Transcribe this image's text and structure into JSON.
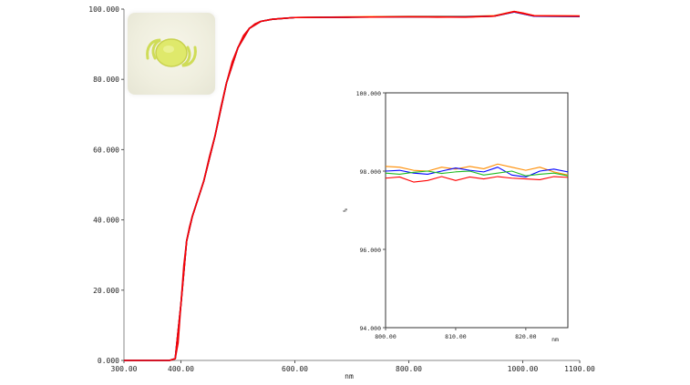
{
  "chart_data": [
    {
      "type": "line",
      "xlabel": "nm",
      "ylabel": "",
      "xlim": [
        300,
        1100
      ],
      "ylim": [
        0,
        100
      ],
      "x_ticks": [
        "300.00",
        "400.00",
        "600.00",
        "800.00",
        "1000.00",
        "1100.00"
      ],
      "x_tick_values": [
        300,
        400,
        600,
        800,
        1000,
        1100
      ],
      "y_ticks": [
        "0.000",
        "20.000",
        "40.000",
        "60.000",
        "80.000",
        "100.000"
      ],
      "y_tick_values": [
        0,
        20,
        40,
        60,
        80,
        100
      ],
      "grid": false,
      "series": [
        {
          "color": "#ff0000",
          "x": [
            300,
            380,
            390,
            395,
            400,
            405,
            410,
            415,
            420,
            430,
            440,
            450,
            460,
            470,
            480,
            490,
            500,
            510,
            520,
            530,
            540,
            560,
            580,
            600,
            650,
            700,
            750,
            800,
            850,
            900,
            950,
            970,
            985,
            1000,
            1020,
            1050,
            1100
          ],
          "y": [
            0,
            0,
            0.5,
            5,
            16,
            27,
            34,
            38,
            41,
            46,
            51,
            58,
            64,
            72,
            79,
            85,
            89,
            92.5,
            94.5,
            95.8,
            96.5,
            97.1,
            97.4,
            97.6,
            97.7,
            97.7,
            97.8,
            97.8,
            97.7,
            97.8,
            98.0,
            98.8,
            99.3,
            98.9,
            98.1,
            98.0,
            98.0
          ]
        },
        {
          "color": "#ff8c00",
          "x": [
            300,
            380,
            390,
            400,
            410,
            420,
            440,
            460,
            480,
            500,
            520,
            540,
            560,
            600,
            700,
            800,
            900,
            950,
            985,
            1020,
            1100
          ],
          "y": [
            0,
            0,
            0.5,
            16,
            34,
            41,
            51,
            64,
            79,
            89,
            94.5,
            96.5,
            97.1,
            97.6,
            97.8,
            97.9,
            97.9,
            98.1,
            99.3,
            98.1,
            98.0
          ]
        },
        {
          "color": "#22bb22",
          "x": [
            300,
            380,
            390,
            400,
            410,
            420,
            440,
            460,
            480,
            500,
            520,
            540,
            560,
            600,
            700,
            800,
            900,
            950,
            985,
            1020,
            1100
          ],
          "y": [
            0,
            0,
            0.5,
            16,
            34,
            41,
            51,
            64,
            79,
            89,
            94.5,
            96.5,
            97.1,
            97.6,
            97.7,
            97.8,
            97.8,
            98.0,
            99.2,
            98.0,
            97.9
          ]
        },
        {
          "color": "#0000ff",
          "x": [
            300,
            380,
            390,
            400,
            410,
            420,
            440,
            460,
            480,
            500,
            520,
            540,
            560,
            600,
            700,
            800,
            900,
            950,
            985,
            1020,
            1100
          ],
          "y": [
            0,
            0,
            0.5,
            16,
            34,
            41,
            51,
            64,
            79,
            89,
            94.5,
            96.5,
            97.1,
            97.6,
            97.7,
            97.8,
            97.8,
            98.0,
            99.2,
            98.0,
            97.9
          ]
        },
        {
          "color": "#ff0000",
          "x": [
            300,
            380,
            390,
            400,
            410,
            420,
            440,
            460,
            480,
            500,
            520,
            540,
            560,
            600,
            700,
            800,
            900,
            950,
            985,
            1020,
            1100
          ],
          "y": [
            0,
            0,
            0.5,
            16,
            34,
            41,
            51,
            64,
            79,
            89,
            94.5,
            96.5,
            97.1,
            97.6,
            97.7,
            97.8,
            97.7,
            98.0,
            99.3,
            98.1,
            98.0
          ]
        }
      ]
    },
    {
      "type": "line",
      "xlabel": "nm",
      "ylabel": "%",
      "xlim": [
        800,
        826
      ],
      "ylim": [
        94,
        100
      ],
      "x_ticks": [
        "800.00",
        "810.00",
        "820.00"
      ],
      "x_tick_values": [
        800,
        810,
        820
      ],
      "y_ticks": [
        "94.000",
        "96.000",
        "98.000",
        "100.000"
      ],
      "y_tick_values": [
        94,
        96,
        98,
        100
      ],
      "grid": false,
      "series": [
        {
          "color": "#ff8c00",
          "x": [
            800,
            802,
            804,
            806,
            808,
            810,
            812,
            814,
            816,
            818,
            820,
            822,
            824,
            826
          ],
          "y": [
            98.12,
            98.1,
            98.02,
            98.0,
            98.1,
            98.05,
            98.12,
            98.06,
            98.18,
            98.1,
            98.02,
            98.1,
            97.98,
            97.9
          ]
        },
        {
          "color": "#0000ff",
          "x": [
            800,
            802,
            804,
            806,
            808,
            810,
            812,
            814,
            816,
            818,
            820,
            822,
            824,
            826
          ],
          "y": [
            98.0,
            98.02,
            97.95,
            97.92,
            98.0,
            98.08,
            98.02,
            97.98,
            98.1,
            97.9,
            97.85,
            98.0,
            98.05,
            97.98
          ]
        },
        {
          "color": "#22bb22",
          "x": [
            800,
            802,
            804,
            806,
            808,
            810,
            812,
            814,
            816,
            818,
            820,
            822,
            824,
            826
          ],
          "y": [
            97.95,
            97.92,
            97.97,
            98.0,
            97.94,
            97.98,
            98.0,
            97.9,
            97.95,
            98.0,
            97.88,
            97.92,
            97.95,
            97.88
          ]
        },
        {
          "color": "#ff0000",
          "x": [
            800,
            802,
            804,
            806,
            808,
            810,
            812,
            814,
            816,
            818,
            820,
            822,
            824,
            826
          ],
          "y": [
            97.82,
            97.85,
            97.72,
            97.76,
            97.86,
            97.76,
            97.85,
            97.8,
            97.86,
            97.82,
            97.8,
            97.78,
            97.86,
            97.84
          ]
        }
      ]
    }
  ]
}
